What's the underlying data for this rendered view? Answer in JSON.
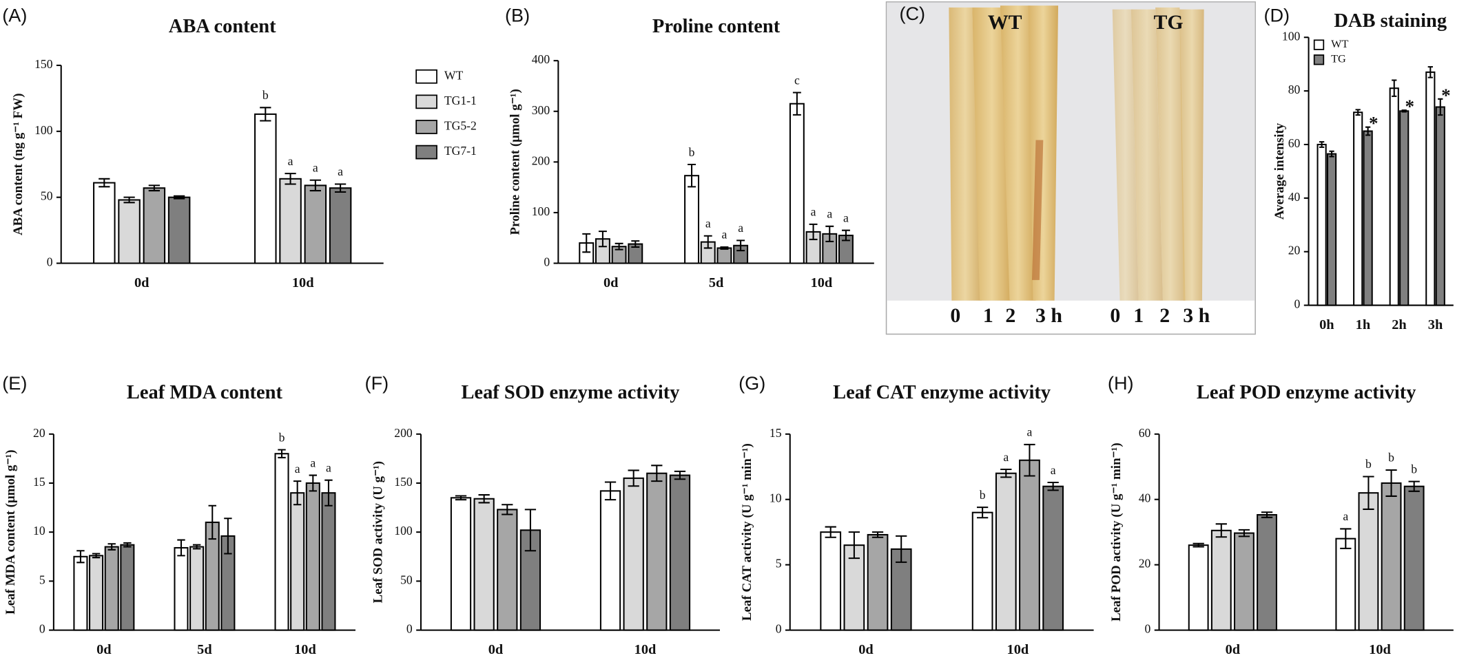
{
  "chart_data": [
    {
      "type": "bar",
      "panel_label": "(A)",
      "title": "ABA content",
      "y_label": "ABA content (ng g⁻¹ FW)",
      "categories": [
        "0d",
        "10d"
      ],
      "ylim": [
        0,
        150
      ],
      "yticks": [
        0,
        50,
        100,
        150
      ],
      "legend": true,
      "legend_position": "outside right",
      "series": [
        {
          "name": "WT",
          "color": "#ffffff",
          "values": [
            61,
            113
          ],
          "errors": [
            3,
            5
          ],
          "annotations": [
            null,
            "b"
          ]
        },
        {
          "name": "TG1-1",
          "color": "#d9d9d9",
          "values": [
            48,
            64
          ],
          "errors": [
            2,
            4
          ],
          "annotations": [
            null,
            "a"
          ]
        },
        {
          "name": "TG5-2",
          "color": "#a6a6a6",
          "values": [
            57,
            59
          ],
          "errors": [
            2,
            4
          ],
          "annotations": [
            null,
            "a"
          ]
        },
        {
          "name": "TG7-1",
          "color": "#7f7f7f",
          "values": [
            50,
            57
          ],
          "errors": [
            1,
            3
          ],
          "annotations": [
            null,
            "a"
          ]
        }
      ]
    },
    {
      "type": "bar",
      "panel_label": "(B)",
      "title": "Proline content",
      "y_label": "Proline content (μmol g⁻¹)",
      "categories": [
        "0d",
        "5d",
        "10d"
      ],
      "ylim": [
        0,
        400
      ],
      "yticks": [
        0,
        100,
        200,
        300,
        400
      ],
      "legend": false,
      "series": [
        {
          "name": "WT",
          "color": "#ffffff",
          "values": [
            40,
            173,
            315
          ],
          "errors": [
            18,
            22,
            22
          ],
          "annotations": [
            null,
            "b",
            "c"
          ]
        },
        {
          "name": "TG1-1",
          "color": "#d9d9d9",
          "values": [
            48,
            42,
            62
          ],
          "errors": [
            15,
            12,
            15
          ],
          "annotations": [
            null,
            "a",
            "a"
          ]
        },
        {
          "name": "TG5-2",
          "color": "#a6a6a6",
          "values": [
            33,
            30,
            58
          ],
          "errors": [
            6,
            2,
            15
          ],
          "annotations": [
            null,
            "a",
            "a"
          ]
        },
        {
          "name": "TG7-1",
          "color": "#7f7f7f",
          "values": [
            38,
            35,
            55
          ],
          "errors": [
            6,
            10,
            10
          ],
          "annotations": [
            null,
            "a",
            "a"
          ]
        }
      ]
    },
    {
      "type": "bar",
      "panel_label": "(D)",
      "title": "DAB staining",
      "y_label": "Average intensity",
      "categories": [
        "0h",
        "1h",
        "2h",
        "3h"
      ],
      "ylim": [
        0,
        100
      ],
      "yticks": [
        0,
        20,
        40,
        60,
        80,
        100
      ],
      "legend": true,
      "legend_position": "upper left",
      "series": [
        {
          "name": "WT",
          "color": "#ffffff",
          "values": [
            60,
            72,
            81,
            87
          ],
          "errors": [
            1,
            1,
            3,
            2
          ],
          "annotations": [
            null,
            null,
            null,
            null
          ]
        },
        {
          "name": "TG",
          "color": "#808080",
          "values": [
            56.5,
            65,
            72.5,
            74
          ],
          "errors": [
            1,
            1.5,
            0.3,
            3
          ],
          "annotations": [
            null,
            "*",
            "*",
            "*"
          ]
        }
      ]
    },
    {
      "type": "bar",
      "panel_label": "(E)",
      "title": "Leaf MDA content",
      "y_label": "Leaf MDA content (μmol g⁻¹)",
      "categories": [
        "0d",
        "5d",
        "10d"
      ],
      "ylim": [
        0,
        20
      ],
      "yticks": [
        0,
        5,
        10,
        15,
        20
      ],
      "legend": false,
      "series": [
        {
          "name": "WT",
          "color": "#ffffff",
          "values": [
            7.5,
            8.4,
            18
          ],
          "errors": [
            0.6,
            0.8,
            0.4
          ],
          "annotations": [
            null,
            null,
            "b"
          ]
        },
        {
          "name": "TG1-1",
          "color": "#d9d9d9",
          "values": [
            7.6,
            8.5,
            14
          ],
          "errors": [
            0.2,
            0.2,
            1.2
          ],
          "annotations": [
            null,
            null,
            "a"
          ]
        },
        {
          "name": "TG5-2",
          "color": "#a6a6a6",
          "values": [
            8.5,
            11,
            15
          ],
          "errors": [
            0.3,
            1.7,
            0.8
          ],
          "annotations": [
            null,
            null,
            "a"
          ]
        },
        {
          "name": "TG7-1",
          "color": "#7f7f7f",
          "values": [
            8.7,
            9.6,
            14
          ],
          "errors": [
            0.2,
            1.8,
            1.3
          ],
          "annotations": [
            null,
            null,
            "a"
          ]
        }
      ]
    },
    {
      "type": "bar",
      "panel_label": "(F)",
      "title": "Leaf SOD enzyme activity",
      "y_label": "Leaf SOD activity (U g⁻¹)",
      "categories": [
        "0d",
        "10d"
      ],
      "ylim": [
        0,
        200
      ],
      "yticks": [
        0,
        50,
        100,
        150,
        200
      ],
      "legend": false,
      "series": [
        {
          "name": "WT",
          "color": "#ffffff",
          "values": [
            135,
            142
          ],
          "errors": [
            2,
            9
          ],
          "annotations": [
            null,
            null
          ]
        },
        {
          "name": "TG1-1",
          "color": "#d9d9d9",
          "values": [
            134,
            155
          ],
          "errors": [
            4,
            8
          ],
          "annotations": [
            null,
            null
          ]
        },
        {
          "name": "TG5-2",
          "color": "#a6a6a6",
          "values": [
            123,
            160
          ],
          "errors": [
            5,
            8
          ],
          "annotations": [
            null,
            null
          ]
        },
        {
          "name": "TG7-1",
          "color": "#7f7f7f",
          "values": [
            102,
            158
          ],
          "errors": [
            21,
            4
          ],
          "annotations": [
            null,
            null
          ]
        }
      ]
    },
    {
      "type": "bar",
      "panel_label": "(G)",
      "title": "Leaf CAT enzyme activity",
      "y_label": "Leaf CAT activity (U g⁻¹ min⁻¹)",
      "categories": [
        "0d",
        "10d"
      ],
      "ylim": [
        0,
        15
      ],
      "yticks": [
        0,
        5,
        10,
        15
      ],
      "legend": false,
      "series": [
        {
          "name": "WT",
          "color": "#ffffff",
          "values": [
            7.5,
            9
          ],
          "errors": [
            0.4,
            0.4
          ],
          "annotations": [
            null,
            "b"
          ]
        },
        {
          "name": "TG1-1",
          "color": "#d9d9d9",
          "values": [
            6.5,
            12
          ],
          "errors": [
            1,
            0.3
          ],
          "annotations": [
            null,
            "a"
          ]
        },
        {
          "name": "TG5-2",
          "color": "#a6a6a6",
          "values": [
            7.3,
            13
          ],
          "errors": [
            0.2,
            1.2
          ],
          "annotations": [
            null,
            "a"
          ]
        },
        {
          "name": "TG7-1",
          "color": "#7f7f7f",
          "values": [
            6.2,
            11
          ],
          "errors": [
            1,
            0.3
          ],
          "annotations": [
            null,
            "a"
          ]
        }
      ]
    },
    {
      "type": "bar",
      "panel_label": "(H)",
      "title": "Leaf POD enzyme activity",
      "y_label": "Leaf POD activity (U g⁻¹ min⁻¹)",
      "categories": [
        "0d",
        "10d"
      ],
      "ylim": [
        0,
        60
      ],
      "yticks": [
        0,
        20,
        40,
        60
      ],
      "legend": false,
      "series": [
        {
          "name": "WT",
          "color": "#ffffff",
          "values": [
            26,
            28
          ],
          "errors": [
            0.5,
            3
          ],
          "annotations": [
            null,
            "a"
          ]
        },
        {
          "name": "TG1-1",
          "color": "#d9d9d9",
          "values": [
            30.5,
            42
          ],
          "errors": [
            2,
            5
          ],
          "annotations": [
            null,
            "b"
          ]
        },
        {
          "name": "TG5-2",
          "color": "#a6a6a6",
          "values": [
            29.7,
            45
          ],
          "errors": [
            1,
            4
          ],
          "annotations": [
            null,
            "b"
          ]
        },
        {
          "name": "TG7-1",
          "color": "#7f7f7f",
          "values": [
            35.3,
            44
          ],
          "errors": [
            0.8,
            1.5
          ],
          "annotations": [
            null,
            "b"
          ]
        }
      ]
    }
  ],
  "photo": {
    "panel_label": "(C)",
    "labels": [
      "WT",
      "TG"
    ],
    "time_labels": [
      "0",
      "1",
      "2",
      "3 h",
      "0",
      "1",
      "2",
      "3 h"
    ]
  }
}
